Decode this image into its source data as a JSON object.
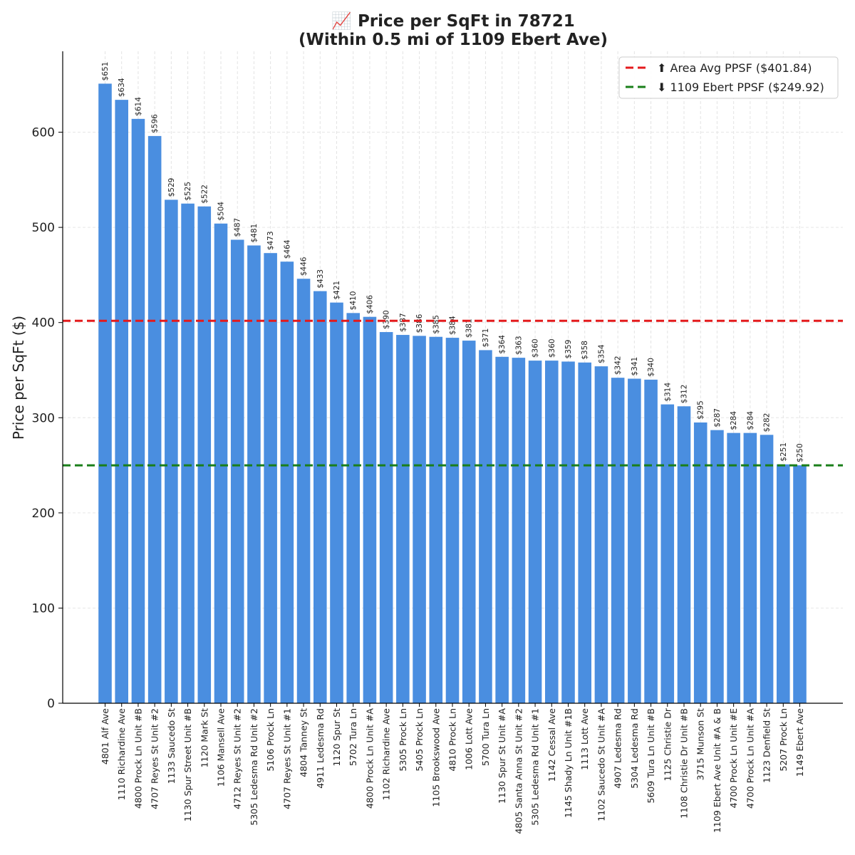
{
  "chart_data": {
    "type": "bar",
    "title_line1": "📈 Price per SqFt in 78721",
    "title_line2": "(Within 0.5 mi of 1109 Ebert Ave)",
    "xlabel": "",
    "ylabel": "Price per SqFt ($)",
    "ylim": [
      0,
      685
    ],
    "yticks": [
      0,
      100,
      200,
      300,
      400,
      500,
      600
    ],
    "grid": true,
    "legend_position": "top-right",
    "bar_color": "#4a8ee0",
    "categories": [
      "4801 Alf Ave",
      "1110 Richardine Ave",
      "4800 Prock Ln Unit #B",
      "4707 Reyes St Unit #2",
      "1133 Saucedo St",
      "1130 Spur Street Unit #B",
      "1120 Mark St",
      "1106 Mansell Ave",
      "4712 Reyes St Unit #2",
      "5305 Ledesma Rd Unit #2",
      "5106 Prock Ln",
      "4707 Reyes St Unit #1",
      "4804 Tanney St",
      "4911 Ledesma Rd",
      "1120 Spur St",
      "5702 Tura Ln",
      "4800 Prock Ln Unit #A",
      "1102 Richardine Ave",
      "5305 Prock Ln",
      "5405 Prock Ln",
      "1105 Brookswood Ave",
      "4810 Prock Ln",
      "1006 Lott Ave",
      "5700 Tura Ln",
      "1130 Spur St Unit #A",
      "4805 Santa Anna St Unit #2",
      "5305 Ledesma Rd Unit #1",
      "1142 Cessal Ave",
      "1145 Shady Ln Unit #1B",
      "1113 Lott Ave",
      "1102 Saucedo St Unit #A",
      "4907 Ledesma Rd",
      "5304 Ledesma Rd",
      "5609 Tura Ln Unit #B",
      "1125 Christie Dr",
      "1108 Christie Dr Unit #B",
      "3715 Munson St",
      "1109 Ebert Ave Unit #A & B",
      "4700 Prock Ln Unit #E",
      "4700 Prock Ln Unit #A",
      "1123 Denfield St",
      "5207 Prock Ln",
      "1149 Ebert Ave"
    ],
    "values": [
      651,
      634,
      614,
      596,
      529,
      525,
      522,
      504,
      487,
      481,
      473,
      464,
      446,
      433,
      421,
      410,
      406,
      390,
      387,
      386,
      385,
      384,
      381,
      371,
      364,
      363,
      360,
      360,
      359,
      358,
      354,
      342,
      341,
      340,
      314,
      312,
      295,
      287,
      284,
      284,
      282,
      251,
      250
    ],
    "value_labels": [
      "$651",
      "$634",
      "$614",
      "$596",
      "$529",
      "$525",
      "$522",
      "$504",
      "$487",
      "$481",
      "$473",
      "$464",
      "$446",
      "$433",
      "$421",
      "$410",
      "$406",
      "$390",
      "$387",
      "$386",
      "$385",
      "$384",
      "$381",
      "$371",
      "$364",
      "$363",
      "$360",
      "$360",
      "$359",
      "$358",
      "$354",
      "$342",
      "$341",
      "$340",
      "$314",
      "$312",
      "$295",
      "$287",
      "$284",
      "$284",
      "$282",
      "$251",
      "$250"
    ],
    "reference_lines": [
      {
        "name": "area-average",
        "label": "⬆ Area Avg PPSF ($401.84)",
        "value": 401.84,
        "color": "#e41a1c"
      },
      {
        "name": "subject-property",
        "label": "⬇ 1109 Ebert PPSF ($249.92)",
        "value": 249.92,
        "color": "#1a7f1a"
      }
    ]
  }
}
